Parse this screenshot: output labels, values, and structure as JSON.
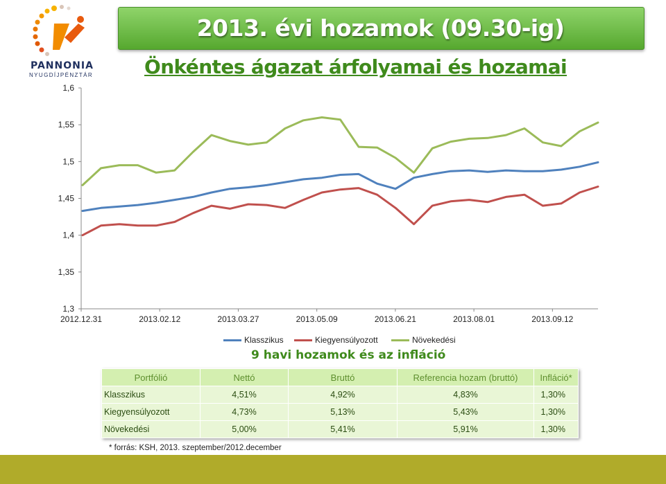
{
  "header": {
    "title": "2013. évi hozamok  (09.30-ig)",
    "subtitle": "Önkéntes ágazat árfolyamai és hozamai"
  },
  "logo": {
    "brand": "PANNONIA",
    "sub": "NYUGDÍJPÉNZTÁR"
  },
  "colors": {
    "banner": "#6cbf45",
    "subtitle": "#3f8a1c",
    "table_bg": "#e9f6d6",
    "bottom_bar": "#b0ab2a"
  },
  "chart_data": {
    "type": "line",
    "x_ticks": [
      "2012.12.31",
      "2013.02.12",
      "2013.03.27",
      "2013.05.09",
      "2013.06.21",
      "2013.08.01",
      "2013.09.12"
    ],
    "y_ticks": [
      "1,3",
      "1,35",
      "1,4",
      "1,45",
      "1,5",
      "1,55",
      "1,6"
    ],
    "ylim": [
      1.3,
      1.6
    ],
    "grid": false,
    "legend_position": "bottom",
    "series": [
      {
        "name": "Klasszikus",
        "color": "#4f81bd",
        "values": [
          1.433,
          1.437,
          1.439,
          1.441,
          1.444,
          1.448,
          1.452,
          1.458,
          1.463,
          1.465,
          1.468,
          1.472,
          1.476,
          1.478,
          1.482,
          1.483,
          1.47,
          1.463,
          1.478,
          1.483,
          1.487,
          1.488,
          1.486,
          1.488,
          1.487,
          1.487,
          1.489,
          1.493,
          1.499
        ]
      },
      {
        "name": "Kiegyensúlyozott",
        "color": "#c0504d",
        "values": [
          1.4,
          1.413,
          1.415,
          1.413,
          1.413,
          1.418,
          1.43,
          1.44,
          1.436,
          1.442,
          1.441,
          1.437,
          1.448,
          1.458,
          1.462,
          1.464,
          1.455,
          1.437,
          1.415,
          1.44,
          1.446,
          1.448,
          1.445,
          1.452,
          1.455,
          1.44,
          1.443,
          1.458,
          1.466
        ]
      },
      {
        "name": "Növekedési",
        "color": "#9bbb59",
        "values": [
          1.468,
          1.491,
          1.495,
          1.495,
          1.485,
          1.488,
          1.513,
          1.536,
          1.528,
          1.523,
          1.526,
          1.545,
          1.556,
          1.56,
          1.557,
          1.52,
          1.519,
          1.505,
          1.485,
          1.518,
          1.527,
          1.531,
          1.532,
          1.536,
          1.545,
          1.526,
          1.521,
          1.541,
          1.553
        ]
      }
    ]
  },
  "table": {
    "title": "9 havi hozamok és az infláció",
    "headers": [
      "Portfólió",
      "Nettó",
      "Bruttó",
      "Referencia hozam (bruttó)",
      "Infláció*"
    ],
    "rows": [
      [
        "Klasszikus",
        "4,51%",
        "4,92%",
        "4,83%",
        "1,30%"
      ],
      [
        "Kiegyensúlyozott",
        "4,73%",
        "5,13%",
        "5,43%",
        "1,30%"
      ],
      [
        "Növekedési",
        "5,00%",
        "5,41%",
        "5,91%",
        "1,30%"
      ]
    ]
  },
  "footnote": "* forrás: KSH, 2013. szeptember/2012.december"
}
